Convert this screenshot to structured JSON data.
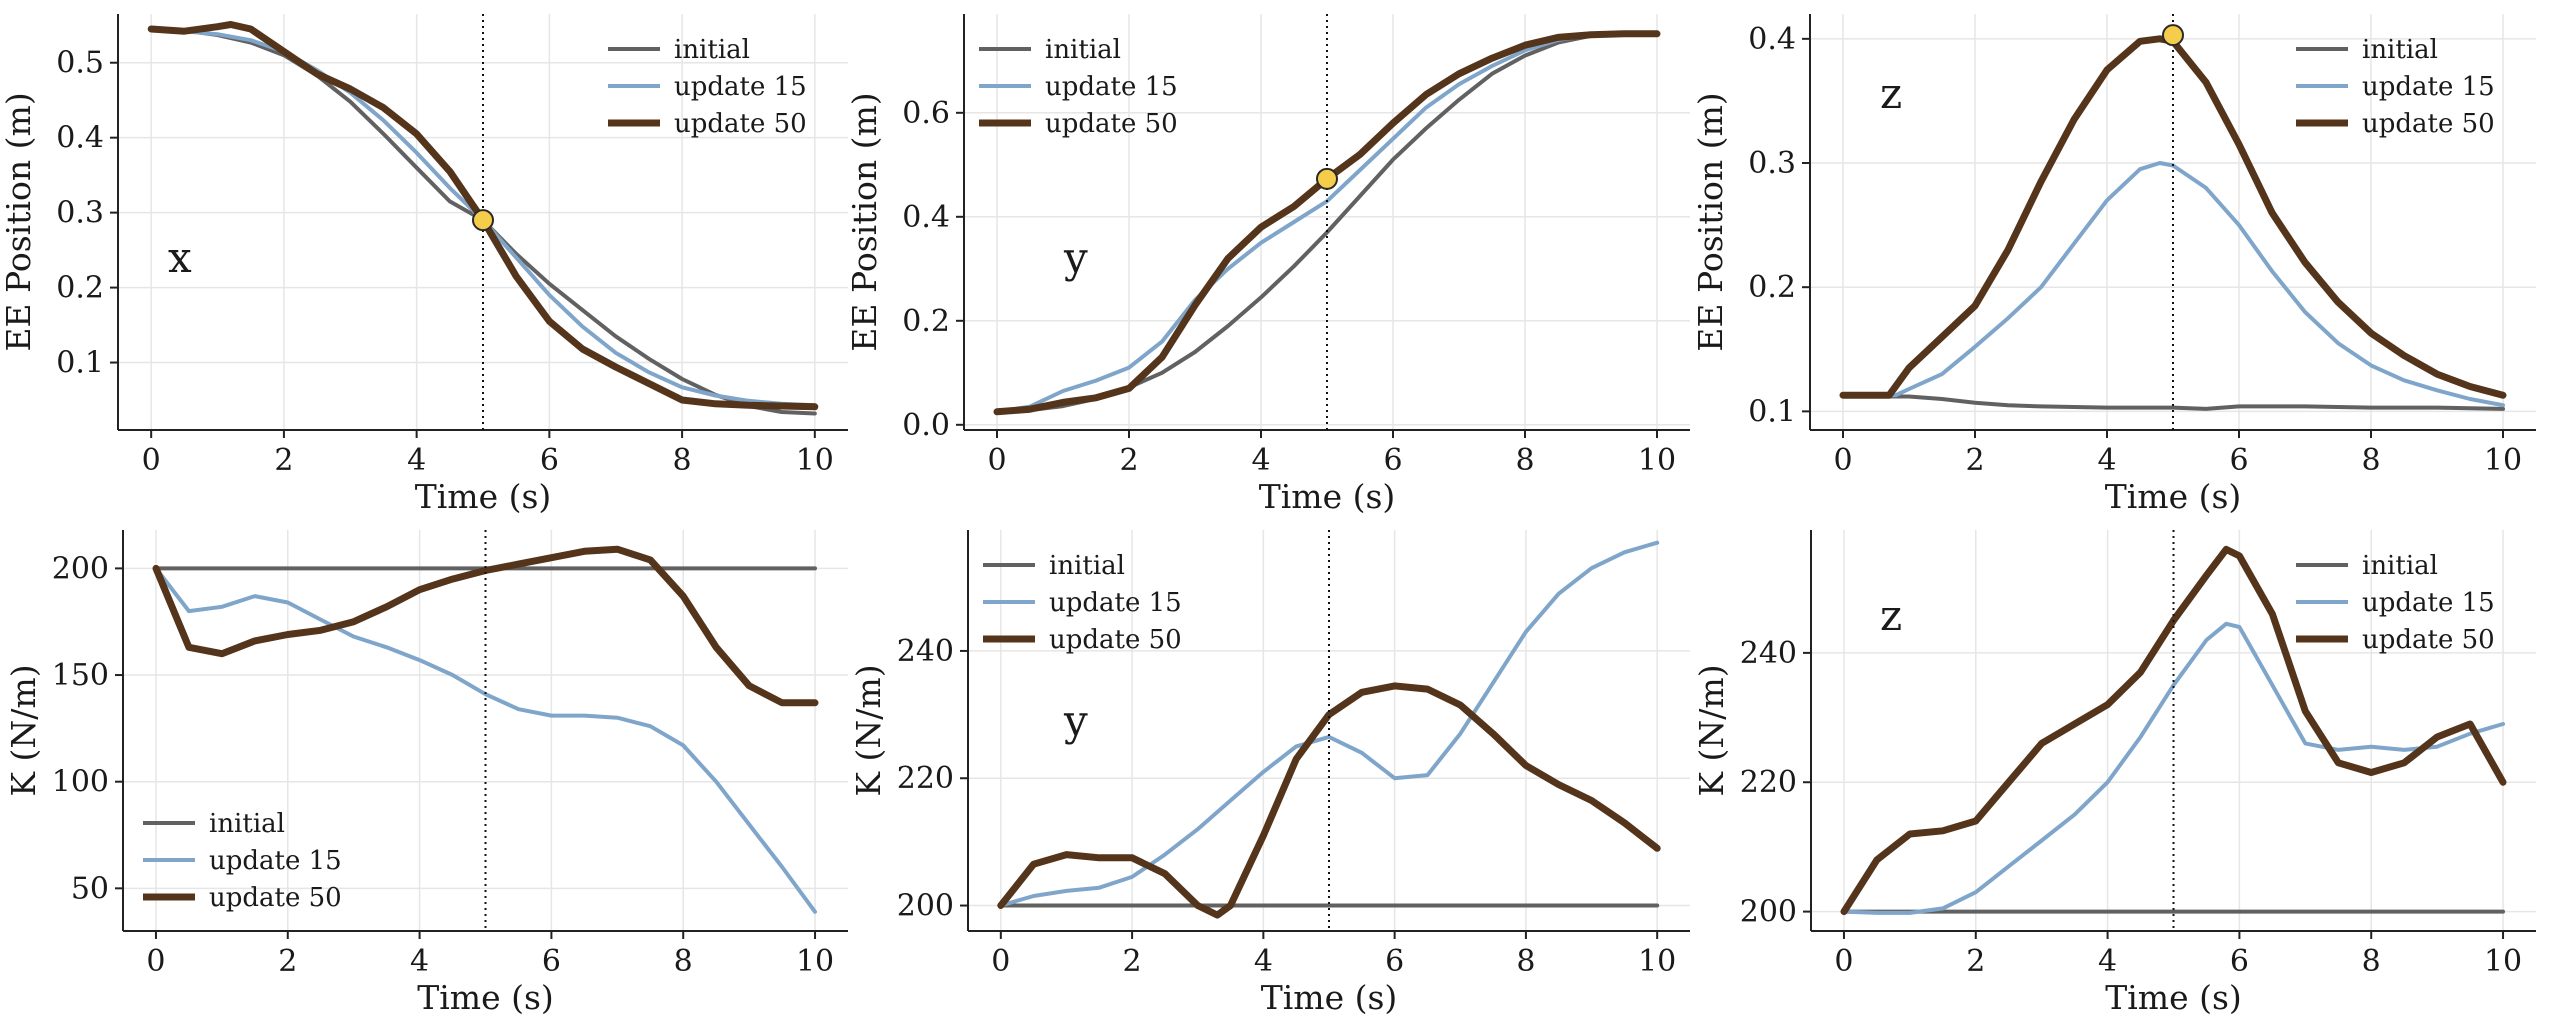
{
  "figure": {
    "colors": {
      "initial": "#616161",
      "update15": "#7fa6ca",
      "update50": "#54341a",
      "marker_fill": "#f5cd4b",
      "marker_stroke": "#2a2a2a"
    },
    "series_labels": [
      "initial",
      "update 15",
      "update 50"
    ],
    "event_time": 5
  },
  "chart_data": [
    {
      "type": "line",
      "panel": "top-left",
      "annotation": "x",
      "xlabel": "Time (s)",
      "ylabel": "EE Position (m)",
      "xlim": [
        -0.5,
        10.5
      ],
      "ylim": [
        0.01,
        0.565
      ],
      "xticks": [
        0,
        2,
        4,
        6,
        8,
        10
      ],
      "yticks": [
        0.1,
        0.2,
        0.3,
        0.4,
        0.5
      ],
      "ytick_labels": [
        "0.1",
        "0.2",
        "0.3",
        "0.4",
        "0.5"
      ],
      "vline": 5,
      "marker": {
        "x": 5,
        "y": 0.29
      },
      "legend": "top-right",
      "series": [
        {
          "name": "initial",
          "x": [
            0,
            0.5,
            1,
            1.5,
            2,
            2.5,
            3,
            3.5,
            4,
            4.5,
            5,
            5.5,
            6,
            6.5,
            7,
            7.5,
            8,
            8.5,
            9,
            9.5,
            10
          ],
          "y": [
            0.545,
            0.543,
            0.537,
            0.527,
            0.51,
            0.483,
            0.448,
            0.405,
            0.36,
            0.315,
            0.29,
            0.245,
            0.205,
            0.17,
            0.135,
            0.105,
            0.078,
            0.057,
            0.042,
            0.034,
            0.032
          ]
        },
        {
          "name": "update 15",
          "x": [
            0,
            0.5,
            1,
            1.5,
            2,
            2.5,
            3,
            3.5,
            4,
            4.5,
            5,
            5.5,
            6,
            6.5,
            7,
            7.5,
            8,
            8.5,
            9,
            9.5,
            10
          ],
          "y": [
            0.545,
            0.542,
            0.538,
            0.53,
            0.515,
            0.49,
            0.46,
            0.423,
            0.38,
            0.333,
            0.29,
            0.24,
            0.19,
            0.148,
            0.113,
            0.087,
            0.067,
            0.056,
            0.049,
            0.045,
            0.043
          ]
        },
        {
          "name": "update 50",
          "x": [
            0,
            0.5,
            1,
            1.2,
            1.5,
            2,
            2.5,
            3,
            3.5,
            4,
            4.5,
            5,
            5.5,
            6,
            6.5,
            7,
            7.5,
            8,
            8.5,
            9,
            9.5,
            10
          ],
          "y": [
            0.545,
            0.542,
            0.548,
            0.551,
            0.545,
            0.515,
            0.485,
            0.465,
            0.44,
            0.405,
            0.355,
            0.29,
            0.215,
            0.155,
            0.118,
            0.094,
            0.072,
            0.05,
            0.045,
            0.043,
            0.042,
            0.041
          ]
        }
      ]
    },
    {
      "type": "line",
      "panel": "top-middle",
      "annotation": "y",
      "xlabel": "Time (s)",
      "ylabel": "EE Position (m)",
      "xlim": [
        -0.5,
        10.5
      ],
      "ylim": [
        -0.01,
        0.79
      ],
      "xticks": [
        0,
        2,
        4,
        6,
        8,
        10
      ],
      "yticks": [
        0.0,
        0.2,
        0.4,
        0.6
      ],
      "ytick_labels": [
        "0.0",
        "0.2",
        "0.4",
        "0.6"
      ],
      "vline": 5,
      "marker": {
        "x": 5,
        "y": 0.473
      },
      "legend": "top-left",
      "series": [
        {
          "name": "initial",
          "x": [
            0,
            0.5,
            1,
            1.5,
            2,
            2.5,
            3,
            3.5,
            4,
            4.5,
            5,
            5.5,
            6,
            6.5,
            7,
            7.5,
            8,
            8.5,
            9,
            9.5,
            10
          ],
          "y": [
            0.025,
            0.028,
            0.036,
            0.05,
            0.072,
            0.1,
            0.14,
            0.19,
            0.245,
            0.305,
            0.37,
            0.44,
            0.51,
            0.57,
            0.625,
            0.675,
            0.71,
            0.735,
            0.748,
            0.752,
            0.752
          ]
        },
        {
          "name": "update 15",
          "x": [
            0,
            0.5,
            1,
            1.5,
            2,
            2.5,
            3,
            3.5,
            4,
            4.5,
            5,
            5.5,
            6,
            6.5,
            7,
            7.5,
            8,
            8.5,
            9,
            9.5,
            10
          ],
          "y": [
            0.025,
            0.035,
            0.065,
            0.085,
            0.11,
            0.16,
            0.24,
            0.3,
            0.35,
            0.39,
            0.43,
            0.49,
            0.55,
            0.61,
            0.655,
            0.69,
            0.72,
            0.74,
            0.75,
            0.752,
            0.752
          ]
        },
        {
          "name": "update 50",
          "x": [
            0,
            0.5,
            1,
            1.5,
            2,
            2.5,
            3,
            3.5,
            4,
            4.5,
            5,
            5.5,
            6,
            6.5,
            7,
            7.5,
            8,
            8.5,
            9,
            9.5,
            10
          ],
          "y": [
            0.025,
            0.03,
            0.043,
            0.052,
            0.07,
            0.13,
            0.23,
            0.32,
            0.38,
            0.42,
            0.473,
            0.52,
            0.58,
            0.635,
            0.675,
            0.705,
            0.73,
            0.745,
            0.75,
            0.752,
            0.752
          ]
        }
      ]
    },
    {
      "type": "line",
      "panel": "top-right",
      "annotation": "z",
      "xlabel": "Time (s)",
      "ylabel": "EE Position (m)",
      "xlim": [
        -0.5,
        10.5
      ],
      "ylim": [
        0.085,
        0.42
      ],
      "xticks": [
        0,
        2,
        4,
        6,
        8,
        10
      ],
      "yticks": [
        0.1,
        0.2,
        0.3,
        0.4
      ],
      "ytick_labels": [
        "0.1",
        "0.2",
        "0.3",
        "0.4"
      ],
      "vline": 5,
      "marker": {
        "x": 5,
        "y": 0.403
      },
      "legend": "top-right",
      "series": [
        {
          "name": "initial",
          "x": [
            0,
            0.5,
            1,
            1.5,
            2,
            2.5,
            3,
            4,
            5,
            5.5,
            6,
            7,
            8,
            9,
            10
          ],
          "y": [
            0.113,
            0.112,
            0.112,
            0.11,
            0.107,
            0.105,
            0.104,
            0.103,
            0.103,
            0.102,
            0.104,
            0.104,
            0.103,
            0.103,
            0.102
          ]
        },
        {
          "name": "update 15",
          "x": [
            0,
            0.5,
            0.8,
            1,
            1.5,
            2,
            2.5,
            3,
            3.5,
            4,
            4.5,
            4.8,
            5,
            5.5,
            6,
            6.5,
            7,
            7.5,
            8,
            8.5,
            9,
            9.5,
            10
          ],
          "y": [
            0.113,
            0.113,
            0.113,
            0.118,
            0.13,
            0.152,
            0.175,
            0.2,
            0.235,
            0.27,
            0.295,
            0.3,
            0.298,
            0.28,
            0.25,
            0.213,
            0.18,
            0.155,
            0.137,
            0.125,
            0.117,
            0.11,
            0.105
          ]
        },
        {
          "name": "update 50",
          "x": [
            0,
            0.5,
            0.7,
            1,
            1.5,
            2,
            2.5,
            3,
            3.5,
            4,
            4.5,
            4.8,
            5,
            5.5,
            6,
            6.5,
            7,
            7.5,
            8,
            8.5,
            9,
            9.5,
            10
          ],
          "y": [
            0.113,
            0.113,
            0.113,
            0.135,
            0.16,
            0.185,
            0.23,
            0.285,
            0.335,
            0.375,
            0.398,
            0.4,
            0.398,
            0.365,
            0.315,
            0.26,
            0.22,
            0.188,
            0.163,
            0.145,
            0.13,
            0.12,
            0.113
          ]
        }
      ]
    },
    {
      "type": "line",
      "panel": "bottom-left",
      "annotation": "",
      "xlabel": "Time (s)",
      "ylabel": "K (N/m)",
      "xlim": [
        -0.5,
        10.5
      ],
      "ylim": [
        30,
        218
      ],
      "xticks": [
        0,
        2,
        4,
        6,
        8,
        10
      ],
      "yticks": [
        50,
        100,
        150,
        200
      ],
      "ytick_labels": [
        "50",
        "100",
        "150",
        "200"
      ],
      "vline": 5,
      "legend": "bottom-left",
      "series": [
        {
          "name": "initial",
          "x": [
            0,
            10
          ],
          "y": [
            200,
            200
          ]
        },
        {
          "name": "update 15",
          "x": [
            0,
            0.5,
            1,
            1.5,
            2,
            2.5,
            3,
            3.5,
            4,
            4.5,
            5,
            5.5,
            6,
            6.5,
            7,
            7.5,
            8,
            8.5,
            9,
            9.5,
            10
          ],
          "y": [
            200,
            180,
            182,
            187,
            184,
            176,
            168,
            163,
            157,
            150,
            141,
            134,
            131,
            131,
            130,
            126,
            117,
            100,
            80,
            60,
            39
          ]
        },
        {
          "name": "update 50",
          "x": [
            0,
            0.5,
            1,
            1.5,
            2,
            2.5,
            3,
            3.5,
            4,
            4.5,
            5,
            5.5,
            6,
            6.5,
            7,
            7.5,
            8,
            8.5,
            9,
            9.5,
            10
          ],
          "y": [
            200,
            163,
            160,
            166,
            169,
            171,
            175,
            182,
            190,
            195,
            199,
            202,
            205,
            208,
            209,
            204,
            187,
            163,
            145,
            137,
            137
          ]
        }
      ]
    },
    {
      "type": "line",
      "panel": "bottom-middle",
      "annotation": "y",
      "xlabel": "Time (s)",
      "ylabel": "K (N/m)",
      "xlim": [
        -0.5,
        10.5
      ],
      "ylim": [
        196,
        259
      ],
      "xticks": [
        0,
        2,
        4,
        6,
        8,
        10
      ],
      "yticks": [
        200,
        220,
        240
      ],
      "ytick_labels": [
        "200",
        "220",
        "240"
      ],
      "vline": 5,
      "legend": "top-left",
      "series": [
        {
          "name": "initial",
          "x": [
            0,
            10
          ],
          "y": [
            200,
            200
          ]
        },
        {
          "name": "update 15",
          "x": [
            0,
            0.5,
            1,
            1.5,
            2,
            2.5,
            3,
            3.5,
            4,
            4.5,
            5,
            5.5,
            6,
            6.5,
            7,
            7.5,
            8,
            8.5,
            9,
            9.5,
            10
          ],
          "y": [
            200,
            201.5,
            202.3,
            202.8,
            204.5,
            208,
            212,
            216.5,
            221,
            225,
            226.5,
            224,
            220,
            220.5,
            227,
            235,
            243,
            249,
            253,
            255.5,
            257
          ]
        },
        {
          "name": "update 50",
          "x": [
            0,
            0.5,
            1,
            1.5,
            2,
            2.5,
            3,
            3.3,
            3.5,
            4,
            4.5,
            5,
            5.5,
            6,
            6.5,
            7,
            7.5,
            8,
            8.5,
            9,
            9.5,
            10
          ],
          "y": [
            200,
            206.5,
            208,
            207.5,
            207.5,
            205,
            200,
            198.5,
            200,
            211,
            223,
            230,
            233.5,
            234.5,
            234,
            231.5,
            227,
            222,
            219,
            216.5,
            213,
            209
          ]
        }
      ]
    },
    {
      "type": "line",
      "panel": "bottom-right",
      "annotation": "z",
      "xlabel": "Time (s)",
      "ylabel": "K (N/m)",
      "xlim": [
        -0.5,
        10.5
      ],
      "ylim": [
        197,
        259
      ],
      "xticks": [
        0,
        2,
        4,
        6,
        8,
        10
      ],
      "yticks": [
        200,
        220,
        240
      ],
      "ytick_labels": [
        "200",
        "220",
        "240"
      ],
      "vline": 5,
      "legend": "top-right",
      "series": [
        {
          "name": "initial",
          "x": [
            0,
            10
          ],
          "y": [
            200,
            200
          ]
        },
        {
          "name": "update 15",
          "x": [
            0,
            0.5,
            1,
            1.5,
            2,
            2.5,
            3,
            3.5,
            4,
            4.5,
            5,
            5.5,
            5.8,
            6,
            6.5,
            7,
            7.5,
            8,
            8.5,
            9,
            9.5,
            10
          ],
          "y": [
            200,
            199.8,
            199.8,
            200.5,
            203,
            207,
            211,
            215,
            220,
            227,
            235,
            242,
            244.5,
            244,
            235,
            226,
            225,
            225.5,
            225,
            225.5,
            227.5,
            229
          ]
        },
        {
          "name": "update 50",
          "x": [
            0,
            0.5,
            1,
            1.5,
            2,
            2.5,
            3,
            3.5,
            4,
            4.5,
            5,
            5.5,
            5.8,
            6,
            6.5,
            7,
            7.5,
            8,
            8.5,
            9,
            9.5,
            10
          ],
          "y": [
            200,
            208,
            212,
            212.5,
            214,
            220,
            226,
            229,
            232,
            237,
            245,
            252,
            256,
            255,
            246,
            231,
            223,
            221.5,
            223,
            227,
            229,
            220
          ]
        }
      ]
    }
  ]
}
